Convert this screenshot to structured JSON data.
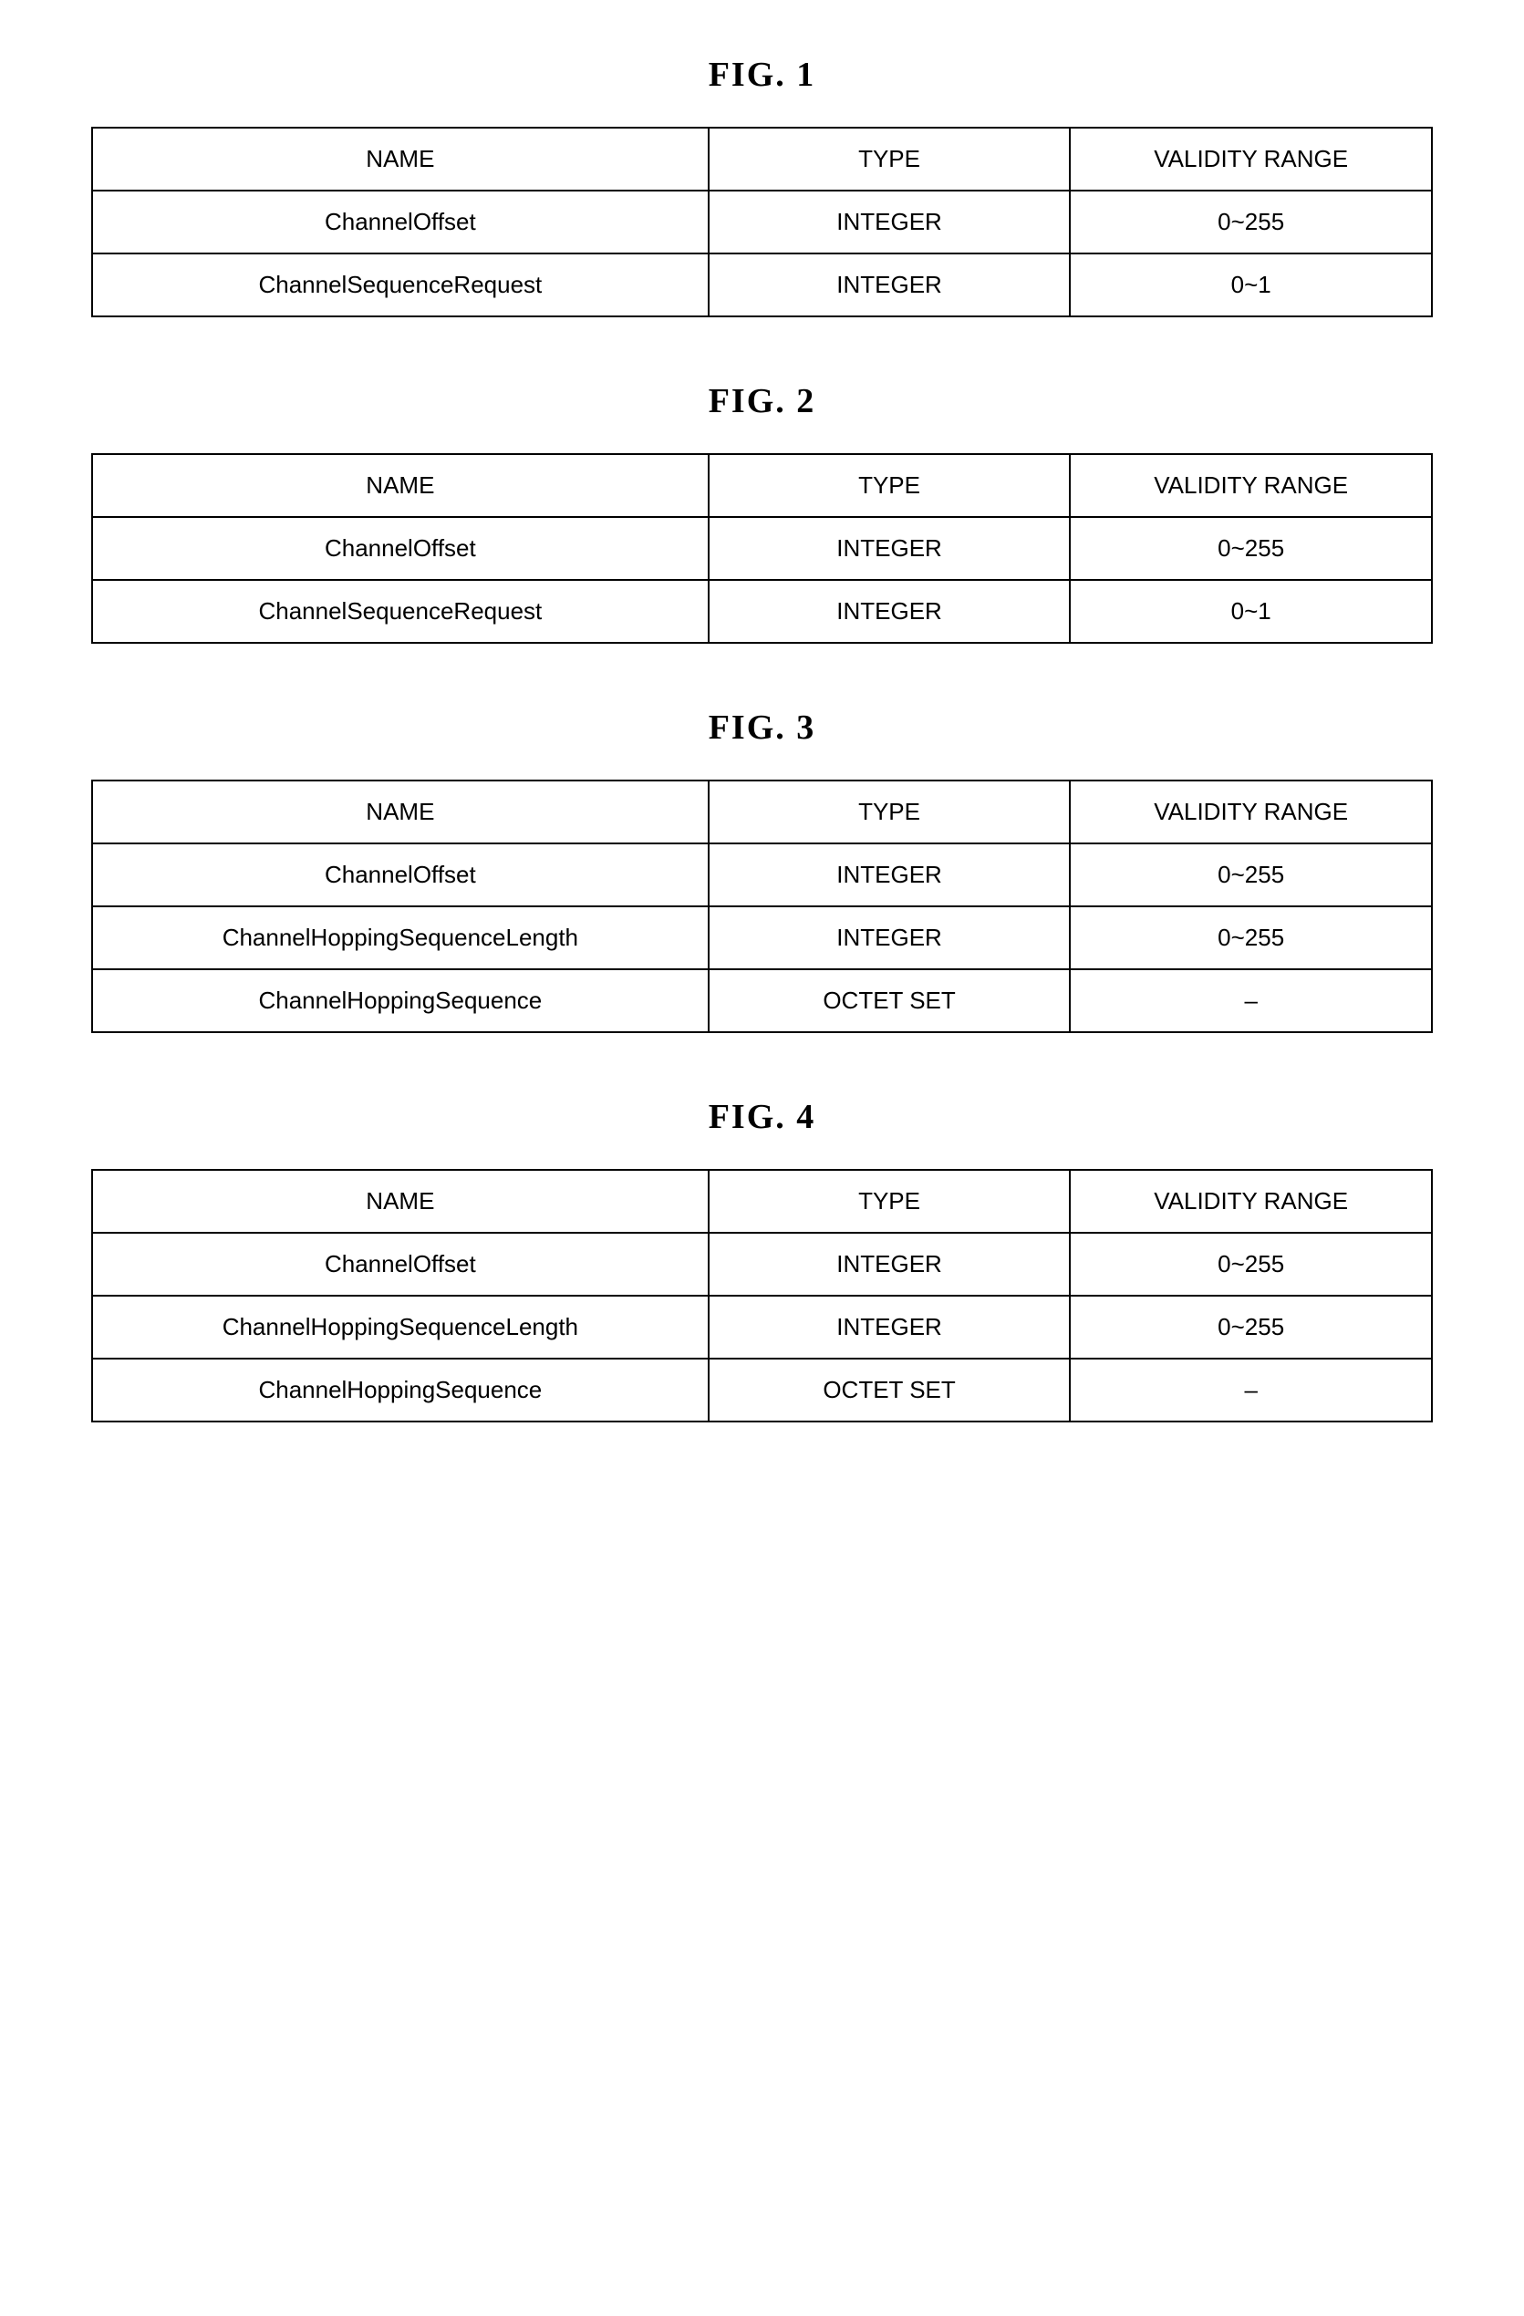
{
  "figures": [
    {
      "title": "FIG.  1",
      "columns": [
        "NAME",
        "TYPE",
        "VALIDITY RANGE"
      ],
      "rows": [
        [
          "ChannelOffset",
          "INTEGER",
          "0~255"
        ],
        [
          "ChannelSequenceRequest",
          "INTEGER",
          "0~1"
        ]
      ]
    },
    {
      "title": "FIG.  2",
      "columns": [
        "NAME",
        "TYPE",
        "VALIDITY RANGE"
      ],
      "rows": [
        [
          "ChannelOffset",
          "INTEGER",
          "0~255"
        ],
        [
          "ChannelSequenceRequest",
          "INTEGER",
          "0~1"
        ]
      ]
    },
    {
      "title": "FIG.  3",
      "columns": [
        "NAME",
        "TYPE",
        "VALIDITY RANGE"
      ],
      "rows": [
        [
          "ChannelOffset",
          "INTEGER",
          "0~255"
        ],
        [
          "ChannelHoppingSequenceLength",
          "INTEGER",
          "0~255"
        ],
        [
          "ChannelHoppingSequence",
          "OCTET SET",
          "–"
        ]
      ]
    },
    {
      "title": "FIG.  4",
      "columns": [
        "NAME",
        "TYPE",
        "VALIDITY RANGE"
      ],
      "rows": [
        [
          "ChannelOffset",
          "INTEGER",
          "0~255"
        ],
        [
          "ChannelHoppingSequenceLength",
          "INTEGER",
          "0~255"
        ],
        [
          "ChannelHoppingSequence",
          "OCTET SET",
          "–"
        ]
      ]
    }
  ]
}
